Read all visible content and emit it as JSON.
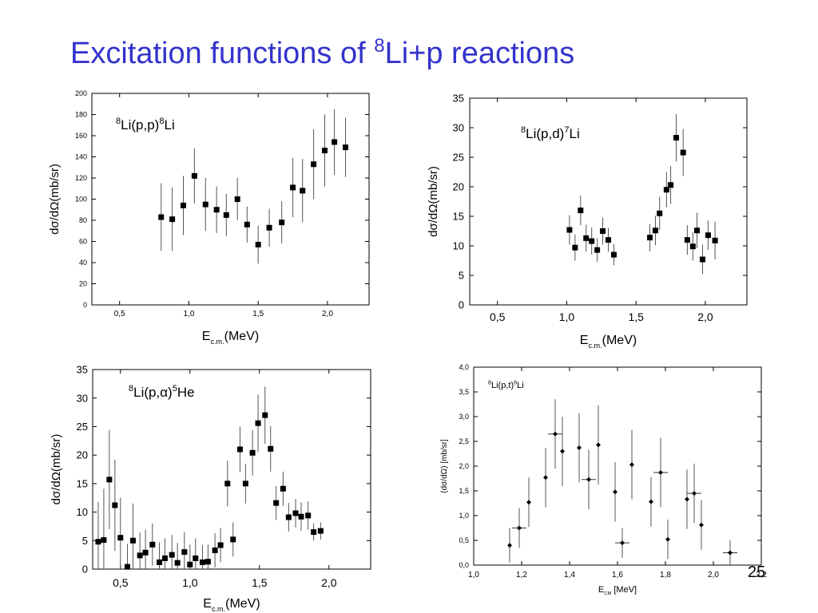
{
  "slide": {
    "title_prefix": "Excitation functions of ",
    "title_sup": "8",
    "title_suffix": "Li+p reactions",
    "page_number": "25",
    "title_color": "#3333cc"
  },
  "chart_data": [
    {
      "type": "scatter",
      "label_parts": [
        [
          "8",
          "sup"
        ],
        [
          "Li(p,p)",
          ""
        ],
        [
          "8",
          "sup"
        ],
        [
          "Li",
          ""
        ]
      ],
      "xlabel_main": "E",
      "xlabel_sub": "c.m.",
      "xlabel_tail": "(MeV)",
      "ylabel": "dσ/dΩ(mb/sr)",
      "xlim": [
        0.3,
        2.3
      ],
      "ylim": [
        0,
        200
      ],
      "xticks": [
        0.5,
        1.0,
        1.5,
        2.0
      ],
      "xtick_labels": [
        "0,5",
        "1,0",
        "1,5",
        "2,0"
      ],
      "yticks": [
        0,
        20,
        40,
        60,
        80,
        100,
        120,
        140,
        160,
        180,
        200
      ],
      "ytick_labels": [
        "0",
        "20",
        "40",
        "60",
        "80",
        "100",
        "120",
        "140",
        "160",
        "180",
        "200"
      ],
      "marker": "square",
      "points": [
        {
          "x": 0.8,
          "y": 83,
          "yerr": 32
        },
        {
          "x": 0.88,
          "y": 81,
          "yerr": 30
        },
        {
          "x": 0.96,
          "y": 94,
          "yerr": 28
        },
        {
          "x": 1.04,
          "y": 122,
          "yerr": 26
        },
        {
          "x": 1.12,
          "y": 95,
          "yerr": 25
        },
        {
          "x": 1.2,
          "y": 90,
          "yerr": 22
        },
        {
          "x": 1.27,
          "y": 85,
          "yerr": 20
        },
        {
          "x": 1.35,
          "y": 100,
          "yerr": 20
        },
        {
          "x": 1.42,
          "y": 76,
          "yerr": 17
        },
        {
          "x": 1.5,
          "y": 57,
          "yerr": 18
        },
        {
          "x": 1.58,
          "y": 73,
          "yerr": 18
        },
        {
          "x": 1.67,
          "y": 78,
          "yerr": 20
        },
        {
          "x": 1.75,
          "y": 111,
          "yerr": 28
        },
        {
          "x": 1.82,
          "y": 108,
          "yerr": 30
        },
        {
          "x": 1.9,
          "y": 133,
          "yerr": 33
        },
        {
          "x": 1.98,
          "y": 146,
          "yerr": 34
        },
        {
          "x": 2.05,
          "y": 154,
          "yerr": 31
        },
        {
          "x": 2.13,
          "y": 149,
          "yerr": 28
        }
      ]
    },
    {
      "type": "scatter",
      "label_parts": [
        [
          "8",
          "sup"
        ],
        [
          "Li(p,d)",
          ""
        ],
        [
          "7",
          "sup"
        ],
        [
          "Li",
          ""
        ]
      ],
      "xlabel_main": "E",
      "xlabel_sub": "c.m.",
      "xlabel_tail": "(MeV)",
      "ylabel": "dσ/dΩ(mb/sr)",
      "xlim": [
        0.3,
        2.3
      ],
      "ylim": [
        0,
        35
      ],
      "xticks": [
        0.5,
        1.0,
        1.5,
        2.0
      ],
      "xtick_labels": [
        "0,5",
        "1,0",
        "1,5",
        "2,0"
      ],
      "yticks": [
        0,
        5,
        10,
        15,
        20,
        25,
        30,
        35
      ],
      "ytick_labels": [
        "0",
        "5",
        "10",
        "15",
        "20",
        "25",
        "30",
        "35"
      ],
      "marker": "square",
      "points": [
        {
          "x": 1.02,
          "y": 12.7,
          "yerr": 2.5
        },
        {
          "x": 1.06,
          "y": 9.7,
          "yerr": 2.2
        },
        {
          "x": 1.1,
          "y": 16.0,
          "yerr": 2.5
        },
        {
          "x": 1.14,
          "y": 11.3,
          "yerr": 2.3
        },
        {
          "x": 1.18,
          "y": 10.8,
          "yerr": 2.3
        },
        {
          "x": 1.22,
          "y": 9.3,
          "yerr": 2.0
        },
        {
          "x": 1.26,
          "y": 12.5,
          "yerr": 2.3
        },
        {
          "x": 1.3,
          "y": 11.0,
          "yerr": 2.0
        },
        {
          "x": 1.34,
          "y": 8.5,
          "yerr": 1.8
        },
        {
          "x": 1.6,
          "y": 11.4,
          "yerr": 2.3
        },
        {
          "x": 1.64,
          "y": 12.6,
          "yerr": 2.5
        },
        {
          "x": 1.67,
          "y": 15.5,
          "yerr": 2.8
        },
        {
          "x": 1.72,
          "y": 19.5,
          "yerr": 3.0
        },
        {
          "x": 1.75,
          "y": 20.3,
          "yerr": 3.2
        },
        {
          "x": 1.79,
          "y": 28.3,
          "yerr": 4.0
        },
        {
          "x": 1.84,
          "y": 25.8,
          "yerr": 4.0
        },
        {
          "x": 1.87,
          "y": 11.0,
          "yerr": 2.5
        },
        {
          "x": 1.91,
          "y": 9.9,
          "yerr": 2.4
        },
        {
          "x": 1.94,
          "y": 12.6,
          "yerr": 3.0
        },
        {
          "x": 1.98,
          "y": 7.7,
          "yerr": 2.5
        },
        {
          "x": 2.02,
          "y": 11.8,
          "yerr": 2.5
        },
        {
          "x": 2.07,
          "y": 10.9,
          "yerr": 3.2
        }
      ]
    },
    {
      "type": "scatter",
      "label_parts": [
        [
          "8",
          "sup"
        ],
        [
          "Li(p,α)",
          ""
        ],
        [
          "5",
          "sup"
        ],
        [
          "He",
          ""
        ]
      ],
      "xlabel_main": "E",
      "xlabel_sub": "c.m.",
      "xlabel_tail": "(MeV)",
      "ylabel": "dσ/dΩ(mb/sr)",
      "xlim": [
        0.3,
        2.3
      ],
      "ylim": [
        0,
        35
      ],
      "xticks": [
        0.5,
        1.0,
        1.5,
        2.0
      ],
      "xtick_labels": [
        "0,5",
        "1,0",
        "1,5",
        "2,0"
      ],
      "yticks": [
        0,
        5,
        10,
        15,
        20,
        25,
        30,
        35
      ],
      "ytick_labels": [
        "0",
        "5",
        "10",
        "15",
        "20",
        "25",
        "30",
        "35"
      ],
      "marker": "square",
      "points": [
        {
          "x": 0.34,
          "y": 4.8,
          "yerr": 7
        },
        {
          "x": 0.38,
          "y": 5.1,
          "yerr": 9
        },
        {
          "x": 0.42,
          "y": 15.7,
          "yerr": 8.7
        },
        {
          "x": 0.46,
          "y": 11.2,
          "yerr": 8
        },
        {
          "x": 0.5,
          "y": 5.5,
          "yerr": 7
        },
        {
          "x": 0.55,
          "y": 0.4,
          "yerr": 4
        },
        {
          "x": 0.59,
          "y": 5.0,
          "yerr": 6.5
        },
        {
          "x": 0.64,
          "y": 2.4,
          "yerr": 4
        },
        {
          "x": 0.68,
          "y": 2.9,
          "yerr": 4
        },
        {
          "x": 0.73,
          "y": 4.3,
          "yerr": 3.7
        },
        {
          "x": 0.78,
          "y": 1.2,
          "yerr": 3.5
        },
        {
          "x": 0.82,
          "y": 1.9,
          "yerr": 3.5
        },
        {
          "x": 0.87,
          "y": 2.5,
          "yerr": 3.5
        },
        {
          "x": 0.91,
          "y": 1.1,
          "yerr": 3.5
        },
        {
          "x": 0.96,
          "y": 3.0,
          "yerr": 3.5
        },
        {
          "x": 1.0,
          "y": 0.8,
          "yerr": 3.5
        },
        {
          "x": 1.04,
          "y": 1.9,
          "yerr": 3.5
        },
        {
          "x": 1.09,
          "y": 1.2,
          "yerr": 3
        },
        {
          "x": 1.13,
          "y": 1.3,
          "yerr": 3
        },
        {
          "x": 1.18,
          "y": 3.3,
          "yerr": 3
        },
        {
          "x": 1.22,
          "y": 4.2,
          "yerr": 3
        },
        {
          "x": 1.27,
          "y": 15.0,
          "yerr": 4
        },
        {
          "x": 1.31,
          "y": 5.2,
          "yerr": 3
        },
        {
          "x": 1.36,
          "y": 21.0,
          "yerr": 4
        },
        {
          "x": 1.4,
          "y": 15.0,
          "yerr": 3.5
        },
        {
          "x": 1.45,
          "y": 20.4,
          "yerr": 4
        },
        {
          "x": 1.49,
          "y": 25.6,
          "yerr": 5
        },
        {
          "x": 1.54,
          "y": 27.0,
          "yerr": 5
        },
        {
          "x": 1.58,
          "y": 21.1,
          "yerr": 4
        },
        {
          "x": 1.62,
          "y": 11.6,
          "yerr": 3
        },
        {
          "x": 1.67,
          "y": 14.1,
          "yerr": 3
        },
        {
          "x": 1.71,
          "y": 9.1,
          "yerr": 2.5
        },
        {
          "x": 1.76,
          "y": 9.8,
          "yerr": 2.5
        },
        {
          "x": 1.8,
          "y": 9.2,
          "yerr": 2.5
        },
        {
          "x": 1.85,
          "y": 9.4,
          "yerr": 2.5
        },
        {
          "x": 1.89,
          "y": 6.5,
          "yerr": 1.5
        },
        {
          "x": 1.94,
          "y": 6.7,
          "yerr": 1.5
        }
      ]
    },
    {
      "type": "scatter",
      "label_parts": [
        [
          "8",
          "sup"
        ],
        [
          "Li(p,t)",
          ""
        ],
        [
          "6",
          "sup"
        ],
        [
          "Li",
          ""
        ]
      ],
      "xlabel_main": "E",
      "xlabel_sub": "CM",
      "xlabel_tail": " [MeV]",
      "ylabel": "(dσ/dΩ)  [mb/sr]",
      "xlim": [
        1.0,
        2.2
      ],
      "ylim": [
        0,
        4.0
      ],
      "xticks": [
        1.0,
        1.2,
        1.4,
        1.6,
        1.8,
        2.0,
        2.2
      ],
      "xtick_labels": [
        "1,0",
        "1,2",
        "1,4",
        "1,6",
        "1,8",
        "2,0",
        "2,2"
      ],
      "yticks": [
        0,
        0.5,
        1.0,
        1.5,
        2.0,
        2.5,
        3.0,
        3.5,
        4.0
      ],
      "ytick_labels": [
        "0,0",
        "0,5",
        "1,0",
        "1,5",
        "2,0",
        "2,5",
        "3,0",
        "3,5",
        "4,0"
      ],
      "marker": "diamond",
      "points": [
        {
          "x": 1.15,
          "y": 0.4,
          "yerr": 0.35,
          "xerr": 0
        },
        {
          "x": 1.19,
          "y": 0.75,
          "yerr": 0.4,
          "xerr": 0.03
        },
        {
          "x": 1.23,
          "y": 1.27,
          "yerr": 0.5,
          "xerr": 0
        },
        {
          "x": 1.3,
          "y": 1.77,
          "yerr": 0.6,
          "xerr": 0
        },
        {
          "x": 1.34,
          "y": 2.65,
          "yerr": 0.7,
          "xerr": 0.03
        },
        {
          "x": 1.37,
          "y": 2.3,
          "yerr": 0.7,
          "xerr": 0
        },
        {
          "x": 1.44,
          "y": 2.37,
          "yerr": 0.7,
          "xerr": 0
        },
        {
          "x": 1.48,
          "y": 1.73,
          "yerr": 0.6,
          "xerr": 0.03
        },
        {
          "x": 1.52,
          "y": 2.43,
          "yerr": 0.8,
          "xerr": 0
        },
        {
          "x": 1.59,
          "y": 1.48,
          "yerr": 0.6,
          "xerr": 0
        },
        {
          "x": 1.62,
          "y": 0.45,
          "yerr": 0.3,
          "xerr": 0.03
        },
        {
          "x": 1.66,
          "y": 2.03,
          "yerr": 0.7,
          "xerr": 0
        },
        {
          "x": 1.74,
          "y": 1.28,
          "yerr": 0.5,
          "xerr": 0
        },
        {
          "x": 1.78,
          "y": 1.87,
          "yerr": 0.7,
          "xerr": 0.03
        },
        {
          "x": 1.81,
          "y": 0.52,
          "yerr": 0.4,
          "xerr": 0
        },
        {
          "x": 1.89,
          "y": 1.33,
          "yerr": 0.6,
          "xerr": 0
        },
        {
          "x": 1.92,
          "y": 1.45,
          "yerr": 0.6,
          "xerr": 0.03
        },
        {
          "x": 1.95,
          "y": 0.81,
          "yerr": 0.5,
          "xerr": 0
        },
        {
          "x": 2.07,
          "y": 0.25,
          "yerr": 0.25,
          "xerr": 0.03
        }
      ]
    }
  ]
}
